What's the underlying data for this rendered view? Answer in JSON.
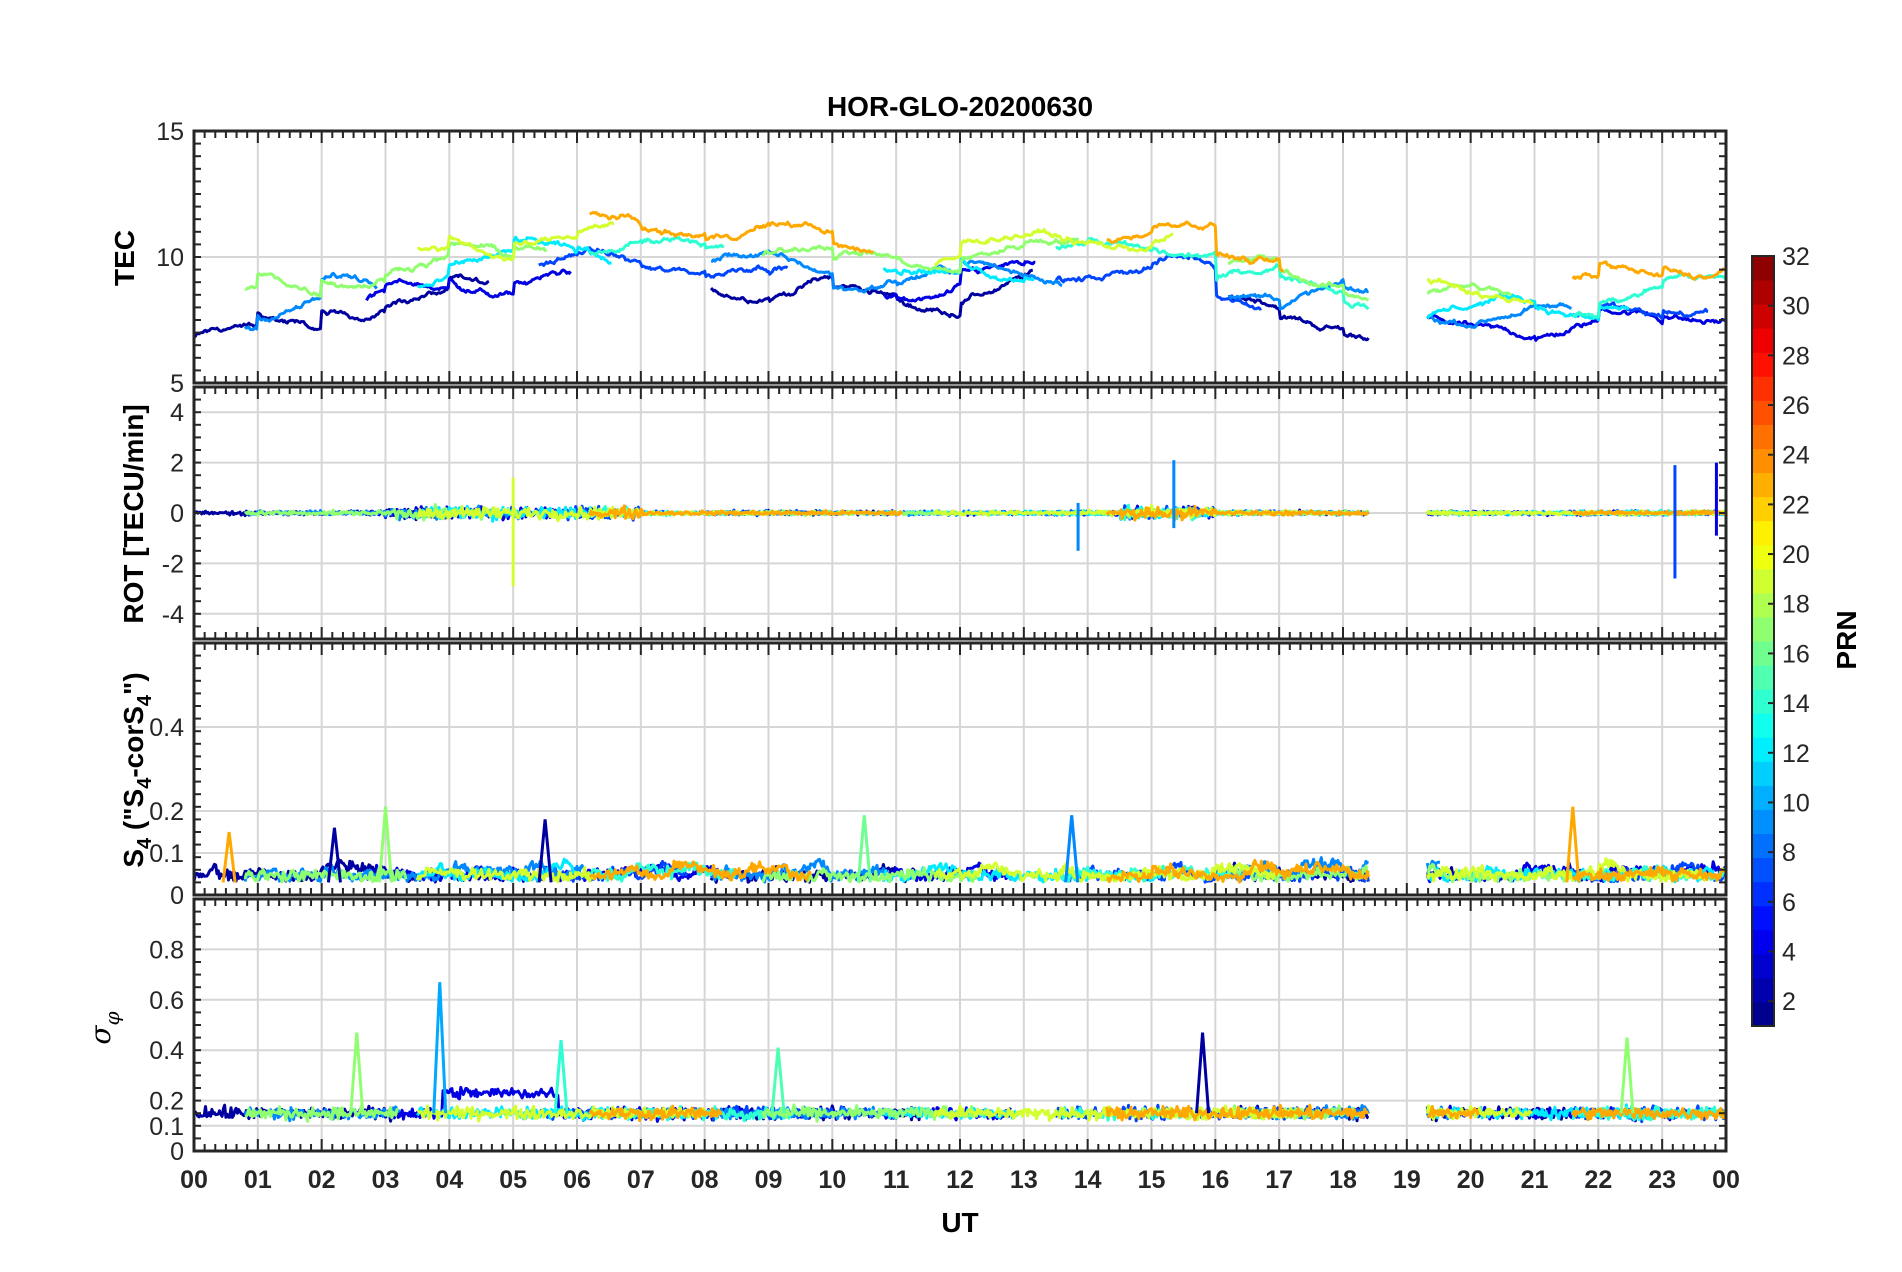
{
  "chart_data": {
    "type": "line",
    "title": "HOR-GLO-20200630",
    "xlabel": "UT",
    "x_ticks": [
      "00",
      "01",
      "02",
      "03",
      "04",
      "05",
      "06",
      "07",
      "08",
      "09",
      "10",
      "11",
      "12",
      "13",
      "14",
      "15",
      "16",
      "17",
      "18",
      "19",
      "20",
      "21",
      "22",
      "23",
      "00"
    ],
    "xlim": [
      0,
      24
    ],
    "grid": true,
    "data_gap": [
      18.4,
      19.3
    ],
    "colorbar": {
      "label": "PRN",
      "range": [
        1,
        32
      ],
      "ticks": [
        "2",
        "4",
        "6",
        "8",
        "10",
        "12",
        "14",
        "16",
        "18",
        "20",
        "22",
        "24",
        "26",
        "28",
        "30",
        "32"
      ],
      "colormap": "jet",
      "colors": [
        "#00008f",
        "#0000ff",
        "#0080ff",
        "#00ffff",
        "#80ff80",
        "#ffff00",
        "#ff8000",
        "#ff0000",
        "#800000"
      ]
    },
    "panels": [
      {
        "id": "tec",
        "ylabel": "TEC",
        "ylim": [
          5,
          15
        ],
        "y_ticks": [
          "5",
          "10",
          "15"
        ],
        "series_prns": [
          2,
          4,
          7,
          9,
          12,
          14,
          17,
          19,
          23
        ],
        "mean_level_by_hour": [
          7.8,
          8.3,
          9.0,
          9.2,
          9.6,
          10.1,
          10.3,
          10.2,
          10.0,
          9.9,
          9.4,
          9.3,
          9.8,
          9.9,
          10.0,
          10.1,
          9.0,
          8.6,
          8.3,
          null,
          8.0,
          7.8,
          8.3,
          8.6,
          7.8
        ]
      },
      {
        "id": "rot",
        "ylabel": "ROT [TECU/min]",
        "ylim": [
          -5,
          5
        ],
        "y_ticks": [
          "-4",
          "-2",
          "0",
          "2",
          "4"
        ],
        "series_prns": [
          2,
          4,
          7,
          9,
          12,
          14,
          17,
          19,
          23
        ],
        "spikes": [
          {
            "t": 5.0,
            "min": -2.9,
            "max": 1.4,
            "prn": 19
          },
          {
            "t": 13.85,
            "min": -1.5,
            "max": 0.4,
            "prn": 9
          },
          {
            "t": 15.35,
            "min": -0.6,
            "max": 2.1,
            "prn": 9
          },
          {
            "t": 23.2,
            "min": -2.6,
            "max": 1.9,
            "prn": 7
          },
          {
            "t": 23.85,
            "min": -0.9,
            "max": 2.0,
            "prn": 4
          }
        ]
      },
      {
        "id": "s4",
        "ylabel": "S4 (\"S4-corS4\")",
        "ylabel_parts": {
          "main": "S",
          "sub1": "4",
          "paren_open": " (\"S",
          "sub2": "4",
          "mid": "-corS",
          "sub3": "4",
          "paren_close": "\")"
        },
        "ylim": [
          0,
          0.6
        ],
        "y_ticks": [
          "0",
          "0.1",
          "0.2",
          "0.4"
        ],
        "series_prns": [
          2,
          4,
          7,
          9,
          12,
          14,
          17,
          19,
          23
        ],
        "peaks": [
          {
            "t": 0.55,
            "value": 0.15,
            "prn": 23
          },
          {
            "t": 2.2,
            "value": 0.16,
            "prn": 2
          },
          {
            "t": 3.0,
            "value": 0.21,
            "prn": 17
          },
          {
            "t": 5.5,
            "value": 0.18,
            "prn": 2
          },
          {
            "t": 10.5,
            "value": 0.19,
            "prn": 16
          },
          {
            "t": 13.75,
            "value": 0.19,
            "prn": 9
          },
          {
            "t": 21.6,
            "value": 0.21,
            "prn": 23
          }
        ]
      },
      {
        "id": "sigma",
        "ylabel": "σφ",
        "ylabel_parts": {
          "main": "σ",
          "sub": "φ"
        },
        "ylim": [
          0,
          1
        ],
        "y_ticks": [
          "0",
          "0.1",
          "0.2",
          "0.4",
          "0.6",
          "0.8"
        ],
        "series_prns": [
          2,
          4,
          7,
          9,
          12,
          14,
          17,
          19,
          23
        ],
        "peaks": [
          {
            "t": 2.55,
            "value": 0.47,
            "prn": 17
          },
          {
            "t": 3.85,
            "value": 0.67,
            "prn": 10
          },
          {
            "t": 5.75,
            "value": 0.44,
            "prn": 14
          },
          {
            "t": 9.15,
            "value": 0.41,
            "prn": 15
          },
          {
            "t": 15.8,
            "value": 0.47,
            "prn": 2
          },
          {
            "t": 22.45,
            "value": 0.45,
            "prn": 17
          }
        ]
      }
    ]
  }
}
